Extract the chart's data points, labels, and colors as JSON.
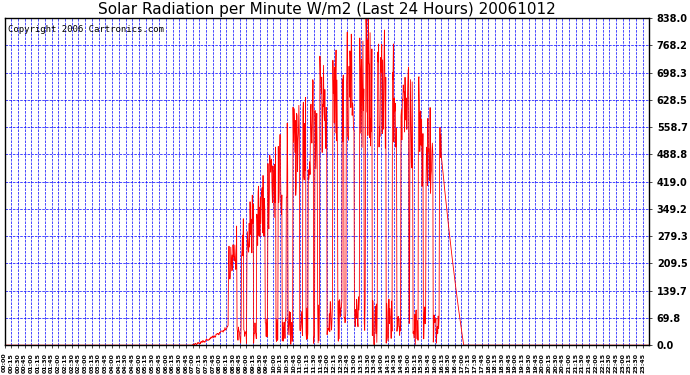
{
  "title": "Solar Radiation per Minute W/m2 (Last 24 Hours) 20061012",
  "copyright_text": "Copyright 2006 Cartronics.com",
  "yticks": [
    0.0,
    69.8,
    139.7,
    209.5,
    279.3,
    349.2,
    419.0,
    488.8,
    558.7,
    628.5,
    698.3,
    768.2,
    838.0
  ],
  "ymax": 838.0,
  "ymin": 0.0,
  "line_color": "#FF0000",
  "bg_color": "#FFFFFF",
  "grid_color": "#0000FF",
  "title_color": "#000000",
  "border_color": "#000000",
  "axis_label_color": "#000000",
  "title_fontsize": 11,
  "copyright_fontsize": 6.5
}
